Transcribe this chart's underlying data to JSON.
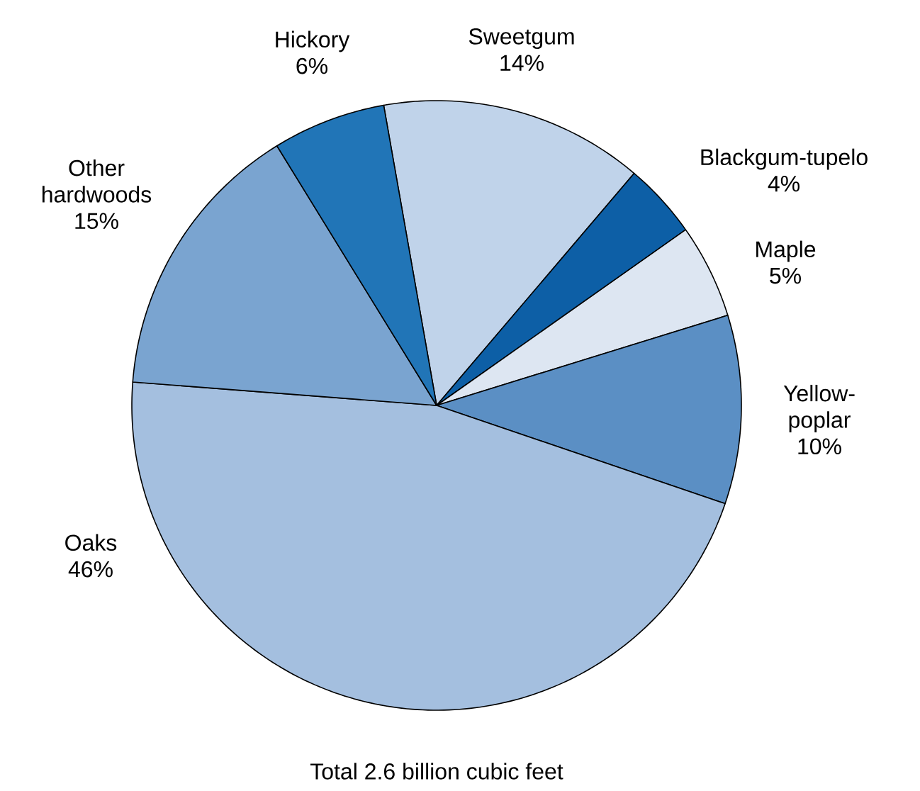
{
  "chart_data": {
    "type": "pie",
    "categories": [
      "Sweetgum",
      "Blackgum-tupelo",
      "Maple",
      "Yellow-poplar",
      "Oaks",
      "Other hardwoods",
      "Hickory"
    ],
    "values": [
      14,
      4,
      5,
      10,
      46,
      15,
      6
    ],
    "value_labels": [
      "14%",
      "4%",
      "5%",
      "10%",
      "46%",
      "15%",
      "6%"
    ],
    "colors": [
      "#c0d3ea",
      "#0d5fa6",
      "#dde6f2",
      "#5b8fc4",
      "#a4bfdf",
      "#7aa4d0",
      "#2175b7"
    ],
    "annotations": [
      "Total 2.6 billion cubic feet"
    ]
  }
}
